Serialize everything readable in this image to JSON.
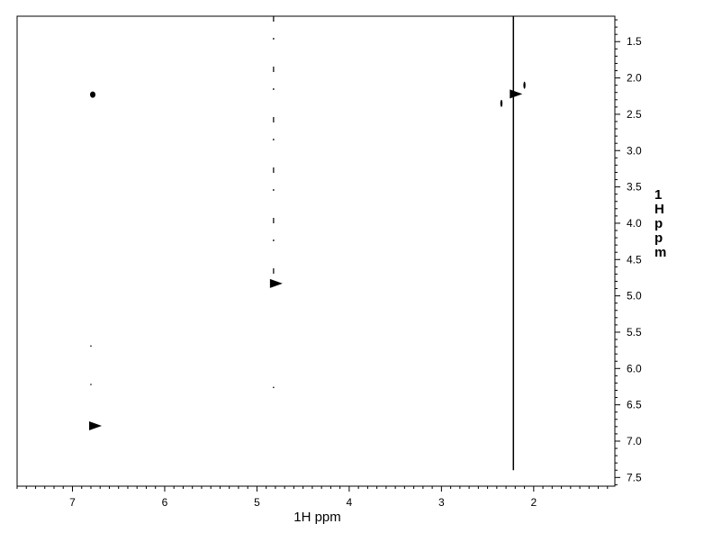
{
  "chart_data": {
    "type": "scatter",
    "subtype": "2D NMR contour plot",
    "xlabel": "1H ppm",
    "ylabel": "1H ppm",
    "xlim": [
      7.6,
      1.12
    ],
    "ylim": [
      1.15,
      7.62
    ],
    "x_reversed": true,
    "y_axis_side": "right",
    "x_ticks": [
      "7",
      "6",
      "5",
      "4",
      "3",
      "2"
    ],
    "y_ticks": [
      "1.5",
      "2.0",
      "2.5",
      "3.0",
      "3.5",
      "4.0",
      "4.5",
      "5.0",
      "5.5",
      "6.0",
      "6.5",
      "7.0",
      "7.5"
    ],
    "grid": false,
    "legend": "none",
    "color": "#000000",
    "peaks": [
      {
        "x": 6.78,
        "y": 2.23,
        "size": "small"
      },
      {
        "x": 6.78,
        "y": 6.79,
        "size": "medium"
      },
      {
        "x": 4.82,
        "y": 4.83,
        "size": "medium"
      },
      {
        "x": 2.22,
        "y": 2.22,
        "size": "medium"
      },
      {
        "x": 2.1,
        "y": 2.1,
        "size": "tiny"
      },
      {
        "x": 2.35,
        "y": 2.35,
        "size": "tiny"
      },
      {
        "x": 6.8,
        "y": 5.69,
        "size": "dot"
      },
      {
        "x": 6.8,
        "y": 6.22,
        "size": "dot"
      },
      {
        "x": 4.82,
        "y": 6.26,
        "size": "dot"
      }
    ],
    "ridges": [
      {
        "x": 2.22,
        "y_from": 1.15,
        "y_to": 7.4,
        "style": "solid"
      },
      {
        "x": 4.82,
        "y_from": 1.15,
        "y_to": 4.8,
        "style": "dashed"
      }
    ]
  }
}
